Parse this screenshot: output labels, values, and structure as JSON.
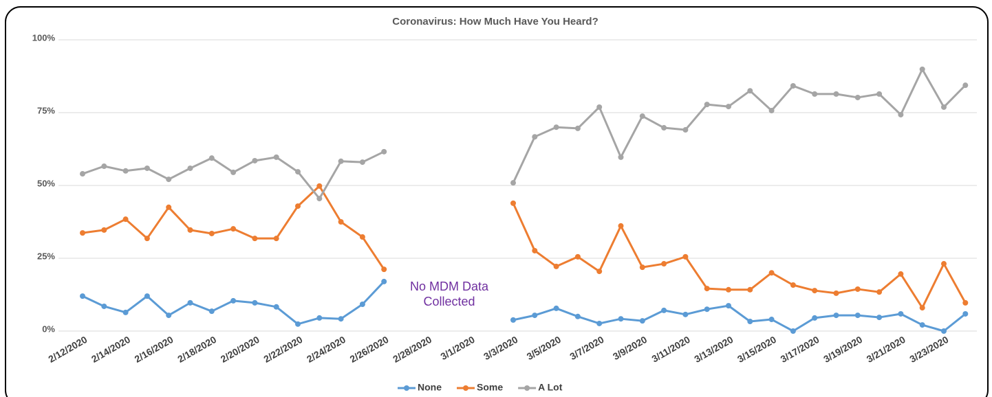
{
  "chart_data": {
    "type": "line",
    "title": "Coronavirus: How Much Have You Heard?",
    "annotation": "No MDM Data Collected",
    "annotation_color": "#7030a0",
    "categories": [
      "2/12/2020",
      null,
      "2/14/2020",
      null,
      "2/16/2020",
      null,
      "2/18/2020",
      null,
      "2/20/2020",
      null,
      "2/22/2020",
      null,
      "2/24/2020",
      null,
      "2/26/2020",
      null,
      "2/28/2020",
      null,
      "3/1/2020",
      null,
      "3/3/2020",
      null,
      "3/5/2020",
      null,
      "3/7/2020",
      null,
      "3/9/2020",
      null,
      "3/11/2020",
      null,
      "3/13/2020",
      null,
      "3/15/2020",
      null,
      "3/17/2020",
      null,
      "3/19/2020",
      null,
      "3/21/2020",
      null,
      "3/23/2020",
      null
    ],
    "series": [
      {
        "name": "None",
        "color": "#5b9bd5",
        "values": [
          12.0,
          8.5,
          6.4,
          12.0,
          5.4,
          9.7,
          6.8,
          10.4,
          9.7,
          8.3,
          2.4,
          4.5,
          4.2,
          9.2,
          17.0,
          null,
          null,
          null,
          null,
          null,
          3.8,
          5.4,
          7.8,
          5.0,
          2.6,
          4.2,
          3.5,
          7.1,
          5.7,
          7.5,
          8.7,
          3.3,
          4.0,
          0,
          4.5,
          5.4,
          5.4,
          4.7,
          5.9,
          2.1,
          0,
          5.9
        ]
      },
      {
        "name": "Some",
        "color": "#ed7d31",
        "values": [
          33.7,
          34.7,
          38.4,
          31.8,
          42.5,
          34.7,
          33.5,
          35.1,
          31.8,
          31.8,
          42.9,
          49.8,
          37.5,
          32.3,
          21.2,
          null,
          null,
          null,
          null,
          null,
          43.9,
          27.6,
          22.2,
          25.5,
          20.5,
          36.1,
          21.9,
          23.1,
          25.5,
          14.6,
          14.2,
          14.2,
          20.0,
          15.8,
          13.9,
          13.0,
          14.4,
          13.4,
          19.6,
          8.0,
          23.1,
          9.7
        ]
      },
      {
        "name": "A Lot",
        "color": "#a5a5a5",
        "values": [
          54.0,
          56.6,
          55.0,
          55.9,
          52.1,
          55.9,
          59.4,
          54.5,
          58.5,
          59.7,
          54.7,
          45.5,
          58.3,
          58.0,
          61.6,
          null,
          null,
          null,
          null,
          null,
          50.9,
          66.7,
          70.0,
          69.6,
          76.9,
          59.7,
          73.8,
          69.8,
          69.1,
          77.8,
          77.1,
          82.5,
          75.7,
          84.2,
          81.4,
          81.4,
          80.2,
          81.4,
          74.3,
          89.9,
          76.9,
          84.4
        ]
      }
    ],
    "ylim": [
      0,
      100
    ],
    "yticks": [
      {
        "value": 0,
        "label": "0%"
      },
      {
        "value": 25,
        "label": "25%"
      },
      {
        "value": 50,
        "label": "50%"
      },
      {
        "value": 75,
        "label": "75%"
      },
      {
        "value": 100,
        "label": "100%"
      }
    ],
    "grid": true,
    "legend": "bottom"
  }
}
